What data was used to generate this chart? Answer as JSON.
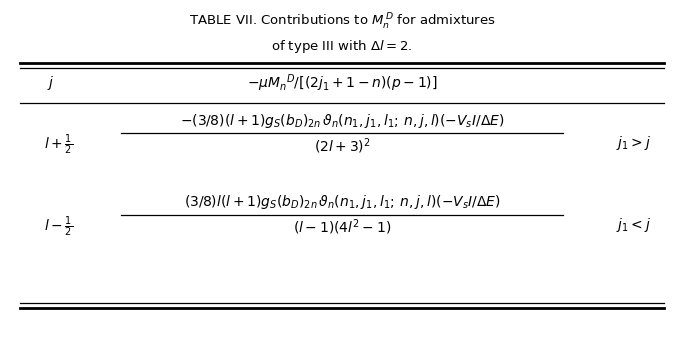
{
  "title_line1": "T\\textsc{ABLE} VII. Contributions to $M_n^{D}$ for admixtures",
  "title_line2": "of type III with $\\Delta l=2$.",
  "col1_header": "$j$",
  "col2_header": "$-\\mu M_n{}^D/[(2j_1+1-n)(p-1)]$",
  "row1_j": "$l+\\frac{1}{2}$",
  "row1_num": "$-(3/8)(l+1)g_S(b_D)_{2n}\\,\\vartheta_n(n_1,j_1,l_1;\\,n,j,l)(-V_s I/\\Delta E)$",
  "row1_den": "$(2l+3)^2$",
  "row1_cond": "$j_1>j$",
  "row2_j": "$l-\\frac{1}{2}$",
  "row2_num": "$(3/8)l(l+1)g_S(b_D)_{2n}\\,\\vartheta_n(n_1,j_1,l_1;\\,n,j,l)(-V_s I/\\Delta E)$",
  "row2_den": "$(l-1)(4l^2-1)$",
  "row2_cond": "$j_1<j$",
  "bg_color": "#ffffff",
  "text_color": "#000000",
  "figsize": [
    6.84,
    3.4
  ],
  "dpi": 100
}
